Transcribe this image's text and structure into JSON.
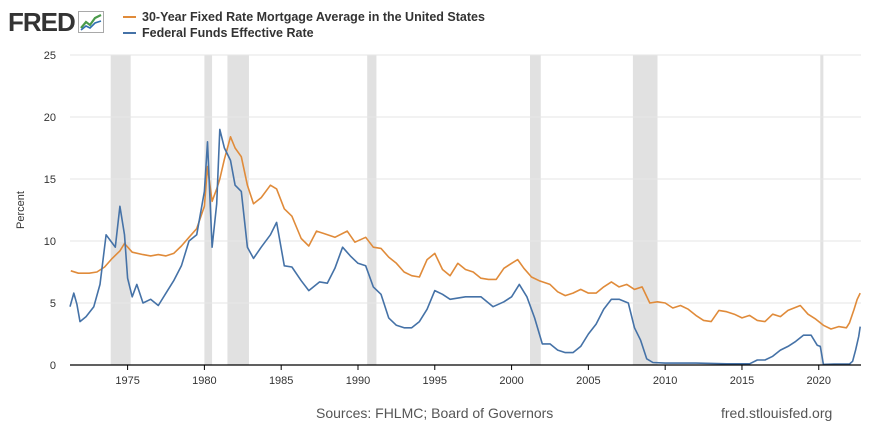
{
  "header": {
    "logo_text": "FRED"
  },
  "footer": {
    "sources": "Sources: FHLMC; Board of Governors",
    "url": "fred.stlouisfed.org"
  },
  "colors": {
    "mortgage": "#e08b3a",
    "fedfunds": "#4572a7",
    "recession": "#e1e1e1",
    "grid": "#e6e6e6",
    "axis": "#000000",
    "background": "#ffffff"
  },
  "chart_data": {
    "type": "line",
    "title": "",
    "xlabel": "",
    "ylabel": "Percent",
    "xlim": [
      1971.25,
      2022.75
    ],
    "ylim": [
      0,
      25
    ],
    "grid": true,
    "legend_position": "top-left",
    "x_ticks": [
      1975,
      1980,
      1985,
      1990,
      1995,
      2000,
      2005,
      2010,
      2015,
      2020
    ],
    "x_tick_labels": [
      "1975",
      "1980",
      "1985",
      "1990",
      "1995",
      "2000",
      "2005",
      "2010",
      "2015",
      "2020"
    ],
    "y_ticks": [
      0,
      5,
      10,
      15,
      20,
      25
    ],
    "y_tick_labels": [
      "0",
      "5",
      "10",
      "15",
      "20",
      "25"
    ],
    "recessions": [
      [
        1973.9,
        1975.2
      ],
      [
        1980.0,
        1980.5
      ],
      [
        1981.5,
        1982.9
      ],
      [
        1990.6,
        1991.2
      ],
      [
        2001.2,
        2001.9
      ],
      [
        2007.9,
        2009.5
      ],
      [
        2020.1,
        2020.3
      ]
    ],
    "series": [
      {
        "name": "30-Year Fixed Rate Mortgage Average in the United States",
        "color": "#e08b3a",
        "x": [
          1971.3,
          1971.8,
          1972.5,
          1973.0,
          1973.5,
          1974.0,
          1974.5,
          1974.8,
          1975.3,
          1976.0,
          1976.5,
          1977.0,
          1977.5,
          1978.0,
          1978.5,
          1979.0,
          1979.5,
          1980.0,
          1980.2,
          1980.5,
          1980.8,
          1981.0,
          1981.3,
          1981.7,
          1982.0,
          1982.4,
          1982.8,
          1983.2,
          1983.7,
          1984.3,
          1984.7,
          1985.2,
          1985.7,
          1986.3,
          1986.8,
          1987.3,
          1987.8,
          1988.5,
          1989.3,
          1989.8,
          1990.5,
          1991.0,
          1991.5,
          1992.0,
          1992.5,
          1993.0,
          1993.5,
          1994.0,
          1994.5,
          1995.0,
          1995.5,
          1996.0,
          1996.5,
          1997.0,
          1997.5,
          1998.0,
          1998.5,
          1999.0,
          1999.5,
          2000.0,
          2000.4,
          2000.8,
          2001.3,
          2001.8,
          2002.5,
          2003.0,
          2003.5,
          2004.0,
          2004.5,
          2005.0,
          2005.5,
          2006.0,
          2006.5,
          2007.0,
          2007.5,
          2008.0,
          2008.5,
          2009.0,
          2009.5,
          2010.0,
          2010.5,
          2011.0,
          2011.5,
          2012.0,
          2012.5,
          2013.0,
          2013.5,
          2014.0,
          2014.5,
          2015.0,
          2015.5,
          2016.0,
          2016.5,
          2017.0,
          2017.5,
          2018.0,
          2018.8,
          2019.3,
          2019.8,
          2020.3,
          2020.8,
          2021.3,
          2021.8,
          2022.0,
          2022.3,
          2022.5,
          2022.7
        ],
        "y": [
          7.6,
          7.4,
          7.4,
          7.5,
          7.9,
          8.6,
          9.2,
          9.8,
          9.1,
          8.9,
          8.8,
          8.9,
          8.8,
          9.0,
          9.6,
          10.3,
          11.0,
          12.8,
          16.0,
          13.2,
          14.2,
          15.0,
          16.6,
          18.4,
          17.5,
          16.8,
          14.5,
          13.0,
          13.5,
          14.5,
          14.2,
          12.6,
          12.0,
          10.2,
          9.6,
          10.8,
          10.6,
          10.3,
          10.8,
          9.9,
          10.3,
          9.5,
          9.4,
          8.7,
          8.2,
          7.5,
          7.2,
          7.1,
          8.5,
          9.0,
          7.7,
          7.2,
          8.2,
          7.7,
          7.5,
          7.0,
          6.9,
          6.9,
          7.8,
          8.2,
          8.5,
          7.8,
          7.1,
          6.8,
          6.5,
          5.9,
          5.6,
          5.8,
          6.1,
          5.8,
          5.8,
          6.3,
          6.7,
          6.3,
          6.5,
          6.1,
          6.3,
          5.0,
          5.1,
          5.0,
          4.6,
          4.8,
          4.5,
          4.0,
          3.6,
          3.5,
          4.4,
          4.3,
          4.1,
          3.8,
          4.0,
          3.6,
          3.5,
          4.1,
          3.9,
          4.4,
          4.8,
          4.1,
          3.7,
          3.2,
          2.9,
          3.1,
          3.0,
          3.4,
          4.5,
          5.3,
          5.8
        ]
      },
      {
        "name": "Federal Funds Effective Rate",
        "color": "#4572a7",
        "x": [
          1971.25,
          1971.5,
          1971.7,
          1971.9,
          1972.3,
          1972.8,
          1973.2,
          1973.6,
          1973.9,
          1974.2,
          1974.5,
          1974.8,
          1975.0,
          1975.3,
          1975.6,
          1976.0,
          1976.5,
          1977.0,
          1977.5,
          1978.0,
          1978.5,
          1979.0,
          1979.5,
          1980.0,
          1980.2,
          1980.5,
          1980.8,
          1981.0,
          1981.3,
          1981.7,
          1982.0,
          1982.4,
          1982.8,
          1983.2,
          1983.7,
          1984.3,
          1984.7,
          1985.2,
          1985.7,
          1986.3,
          1986.8,
          1987.0,
          1987.5,
          1988.0,
          1988.5,
          1989.0,
          1989.5,
          1990.0,
          1990.5,
          1991.0,
          1991.5,
          1992.0,
          1992.5,
          1993.0,
          1993.5,
          1994.0,
          1994.5,
          1995.0,
          1995.5,
          1996.0,
          1997.0,
          1998.0,
          1998.8,
          1999.5,
          2000.0,
          2000.5,
          2001.0,
          2001.5,
          2002.0,
          2002.5,
          2003.0,
          2003.5,
          2004.0,
          2004.5,
          2005.0,
          2005.5,
          2006.0,
          2006.5,
          2007.0,
          2007.6,
          2008.0,
          2008.4,
          2008.8,
          2009.2,
          2010.0,
          2012.0,
          2014.0,
          2015.5,
          2016.0,
          2016.5,
          2017.0,
          2017.5,
          2018.0,
          2018.5,
          2019.0,
          2019.5,
          2019.9,
          2020.1,
          2020.3,
          2021.0,
          2021.8,
          2022.0,
          2022.2,
          2022.4,
          2022.6,
          2022.7
        ],
        "y": [
          4.7,
          5.8,
          4.9,
          3.5,
          3.9,
          4.7,
          6.5,
          10.5,
          10.0,
          9.5,
          12.8,
          10.5,
          7.0,
          5.5,
          6.5,
          5.0,
          5.3,
          4.8,
          5.8,
          6.8,
          8.0,
          10.0,
          10.5,
          14.0,
          18.0,
          9.5,
          13.0,
          19.0,
          17.5,
          16.5,
          14.5,
          14.0,
          9.5,
          8.6,
          9.5,
          10.5,
          11.5,
          8.0,
          7.9,
          6.8,
          6.0,
          6.2,
          6.7,
          6.6,
          7.8,
          9.5,
          8.8,
          8.2,
          8.0,
          6.3,
          5.7,
          3.8,
          3.2,
          3.0,
          3.0,
          3.5,
          4.5,
          6.0,
          5.7,
          5.3,
          5.5,
          5.5,
          4.7,
          5.1,
          5.5,
          6.5,
          5.5,
          3.8,
          1.7,
          1.7,
          1.2,
          1.0,
          1.0,
          1.5,
          2.5,
          3.3,
          4.5,
          5.3,
          5.3,
          5.0,
          3.0,
          2.0,
          0.5,
          0.2,
          0.15,
          0.15,
          0.1,
          0.1,
          0.4,
          0.4,
          0.7,
          1.2,
          1.5,
          1.9,
          2.4,
          2.4,
          1.6,
          1.5,
          0.05,
          0.08,
          0.08,
          0.08,
          0.3,
          1.2,
          2.3,
          3.1
        ]
      }
    ]
  }
}
